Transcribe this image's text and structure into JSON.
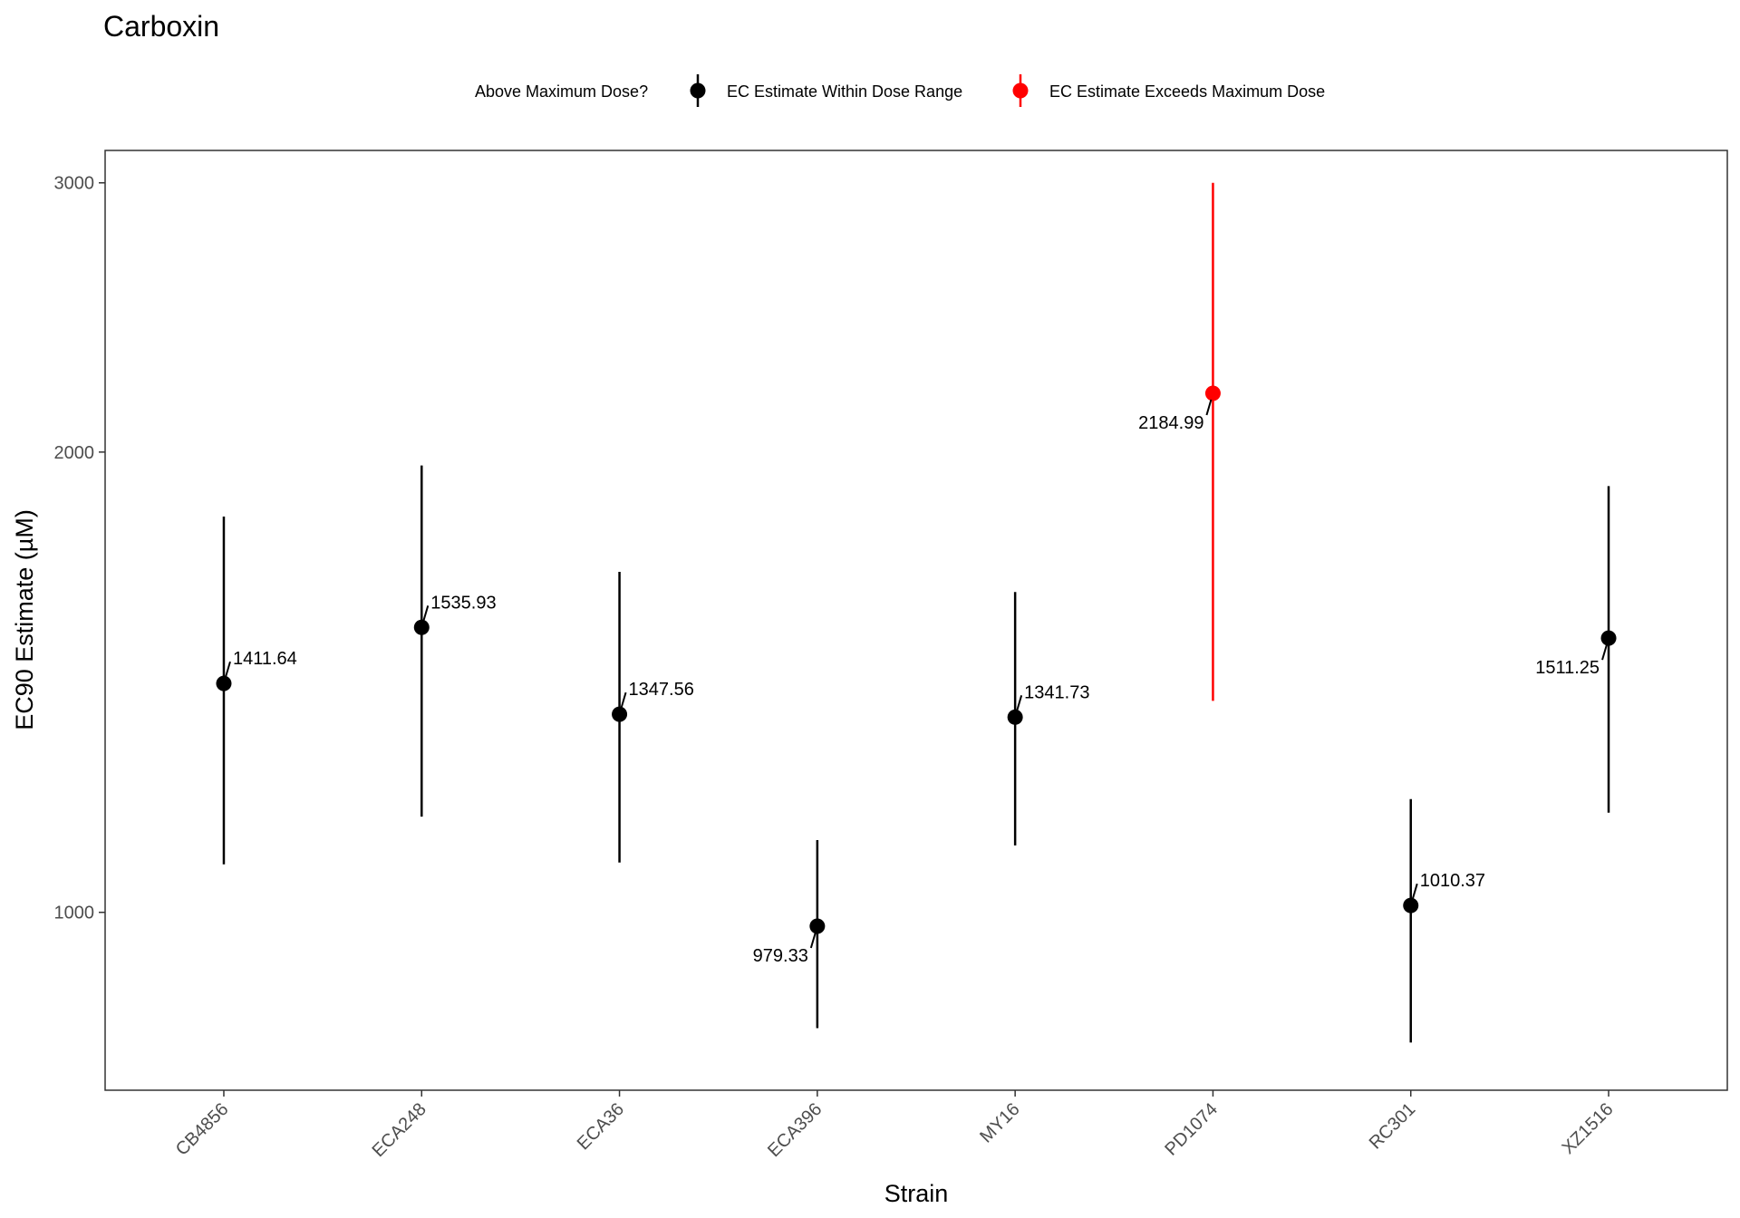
{
  "chart_data": {
    "type": "errorbar-point",
    "title": "Carboxin",
    "xlabel": "Strain",
    "ylabel": "EC90 Estimate (µM)",
    "y_scale": "log10",
    "ylim": [
      765,
      3150
    ],
    "y_ticks": [
      1000,
      2000,
      3000
    ],
    "y_tick_labels": [
      "1000",
      "2000",
      "3000"
    ],
    "legend": {
      "title": "Above Maximum Dose?",
      "position": "top",
      "entries": [
        {
          "label": "EC Estimate Within Dose Range",
          "color": "#000000"
        },
        {
          "label": "EC Estimate Exceeds Maximum Dose",
          "color": "#ff0000"
        }
      ]
    },
    "categories": [
      "CB4856",
      "ECA248",
      "ECA36",
      "ECA396",
      "MY16",
      "PD1074",
      "RC301",
      "XZ1516"
    ],
    "points": [
      {
        "strain": "CB4856",
        "estimate": 1411.64,
        "lower": 1075,
        "upper": 1815,
        "label": "1411.64",
        "exceeds": false,
        "label_side": "right"
      },
      {
        "strain": "ECA248",
        "estimate": 1535.93,
        "lower": 1155,
        "upper": 1960,
        "label": "1535.93",
        "exceeds": false,
        "label_side": "right"
      },
      {
        "strain": "ECA36",
        "estimate": 1347.56,
        "lower": 1078,
        "upper": 1670,
        "label": "1347.56",
        "exceeds": false,
        "label_side": "right"
      },
      {
        "strain": "ECA396",
        "estimate": 979.33,
        "lower": 840,
        "upper": 1115,
        "label": "979.33",
        "exceeds": false,
        "label_side": "left"
      },
      {
        "strain": "MY16",
        "estimate": 1341.73,
        "lower": 1106,
        "upper": 1620,
        "label": "1341.73",
        "exceeds": false,
        "label_side": "right"
      },
      {
        "strain": "PD1074",
        "estimate": 2184.99,
        "lower": 1375,
        "upper": 3000,
        "label": "2184.99",
        "exceeds": true,
        "label_side": "left"
      },
      {
        "strain": "RC301",
        "estimate": 1010.37,
        "lower": 822,
        "upper": 1186,
        "label": "1010.37",
        "exceeds": false,
        "label_side": "right"
      },
      {
        "strain": "XZ1516",
        "estimate": 1511.25,
        "lower": 1162,
        "upper": 1900,
        "label": "1511.25",
        "exceeds": false,
        "label_side": "left"
      }
    ]
  }
}
